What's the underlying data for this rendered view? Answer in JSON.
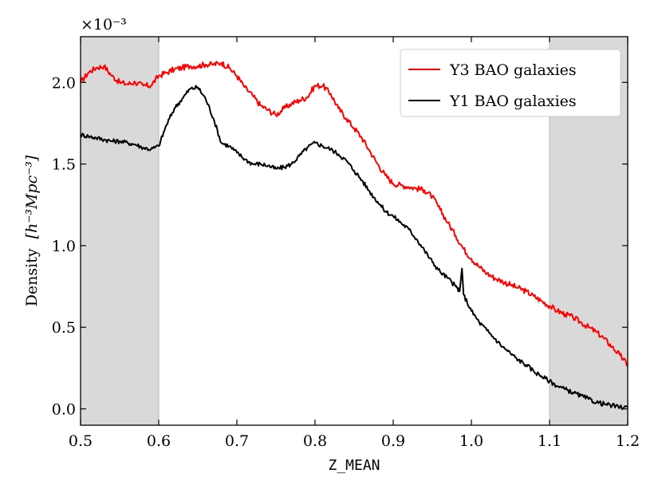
{
  "chart_data": {
    "type": "line",
    "title": "",
    "xlabel": "Z_MEAN",
    "ylabel": "Density",
    "ylabel_units": "[h⁻³Mpc⁻³]",
    "y_offset_label": "×10⁻³",
    "xlim": [
      0.5,
      1.2
    ],
    "ylim": [
      -0.1,
      2.28
    ],
    "xticks": [
      0.5,
      0.6,
      0.7,
      0.8,
      0.9,
      1.0,
      1.1,
      1.2
    ],
    "xtick_labels": [
      "0.5",
      "0.6",
      "0.7",
      "0.8",
      "0.9",
      "1.0",
      "1.1",
      "1.2"
    ],
    "yticks": [
      0.0,
      0.5,
      1.0,
      1.5,
      2.0
    ],
    "ytick_labels": [
      "0.0",
      "0.5",
      "1.0",
      "1.5",
      "2.0"
    ],
    "grid": false,
    "legend_position": "top-right",
    "shaded_regions": [
      {
        "x0": 0.5,
        "x1": 0.6,
        "color": "#d9d9d9"
      },
      {
        "x0": 1.1,
        "x1": 1.2,
        "color": "#d9d9d9"
      }
    ],
    "series": [
      {
        "name": "Y3 BAO galaxies",
        "color": "#ff0000",
        "x": [
          0.5,
          0.51,
          0.52,
          0.53,
          0.54,
          0.55,
          0.56,
          0.57,
          0.58,
          0.59,
          0.6,
          0.61,
          0.62,
          0.63,
          0.64,
          0.65,
          0.66,
          0.67,
          0.68,
          0.69,
          0.7,
          0.71,
          0.72,
          0.73,
          0.74,
          0.75,
          0.76,
          0.77,
          0.78,
          0.79,
          0.8,
          0.81,
          0.82,
          0.83,
          0.84,
          0.85,
          0.86,
          0.87,
          0.88,
          0.89,
          0.9,
          0.91,
          0.92,
          0.93,
          0.94,
          0.95,
          0.96,
          0.97,
          0.98,
          0.99,
          1.0,
          1.01,
          1.02,
          1.03,
          1.04,
          1.05,
          1.06,
          1.07,
          1.08,
          1.09,
          1.1,
          1.11,
          1.12,
          1.13,
          1.14,
          1.15,
          1.16,
          1.17,
          1.18,
          1.19,
          1.2
        ],
        "y": [
          2.0,
          2.06,
          2.09,
          2.1,
          2.04,
          2.0,
          1.99,
          2.0,
          1.98,
          1.98,
          2.04,
          2.06,
          2.08,
          2.09,
          2.1,
          2.1,
          2.11,
          2.11,
          2.12,
          2.09,
          2.04,
          1.97,
          1.92,
          1.86,
          1.83,
          1.8,
          1.84,
          1.87,
          1.89,
          1.91,
          1.98,
          1.98,
          1.93,
          1.84,
          1.78,
          1.72,
          1.66,
          1.58,
          1.5,
          1.43,
          1.38,
          1.37,
          1.36,
          1.35,
          1.34,
          1.3,
          1.22,
          1.14,
          1.06,
          0.98,
          0.92,
          0.87,
          0.83,
          0.8,
          0.78,
          0.76,
          0.74,
          0.72,
          0.69,
          0.66,
          0.63,
          0.6,
          0.58,
          0.56,
          0.53,
          0.5,
          0.47,
          0.43,
          0.38,
          0.33,
          0.27
        ]
      },
      {
        "name": "Y1 BAO galaxies",
        "color": "#000000",
        "x": [
          0.5,
          0.51,
          0.52,
          0.53,
          0.54,
          0.55,
          0.56,
          0.57,
          0.58,
          0.59,
          0.6,
          0.61,
          0.62,
          0.63,
          0.64,
          0.65,
          0.66,
          0.67,
          0.68,
          0.69,
          0.7,
          0.71,
          0.72,
          0.73,
          0.74,
          0.75,
          0.76,
          0.77,
          0.78,
          0.79,
          0.8,
          0.81,
          0.82,
          0.83,
          0.84,
          0.85,
          0.86,
          0.87,
          0.88,
          0.89,
          0.9,
          0.91,
          0.92,
          0.93,
          0.94,
          0.95,
          0.96,
          0.97,
          0.98,
          0.985,
          0.988,
          0.99,
          1.0,
          1.01,
          1.02,
          1.03,
          1.04,
          1.05,
          1.06,
          1.07,
          1.08,
          1.09,
          1.1,
          1.11,
          1.12,
          1.13,
          1.14,
          1.15,
          1.16,
          1.17,
          1.18,
          1.19,
          1.2
        ],
        "y": [
          1.68,
          1.67,
          1.66,
          1.65,
          1.64,
          1.64,
          1.63,
          1.62,
          1.6,
          1.59,
          1.61,
          1.74,
          1.84,
          1.9,
          1.96,
          1.97,
          1.9,
          1.78,
          1.63,
          1.61,
          1.57,
          1.53,
          1.5,
          1.5,
          1.49,
          1.47,
          1.48,
          1.5,
          1.55,
          1.6,
          1.63,
          1.61,
          1.59,
          1.56,
          1.52,
          1.46,
          1.4,
          1.33,
          1.27,
          1.21,
          1.18,
          1.14,
          1.1,
          1.04,
          0.97,
          0.9,
          0.84,
          0.8,
          0.75,
          0.72,
          0.86,
          0.7,
          0.6,
          0.53,
          0.48,
          0.43,
          0.38,
          0.34,
          0.3,
          0.27,
          0.23,
          0.2,
          0.17,
          0.14,
          0.12,
          0.1,
          0.08,
          0.06,
          0.04,
          0.03,
          0.02,
          0.01,
          0.01
        ]
      }
    ]
  }
}
